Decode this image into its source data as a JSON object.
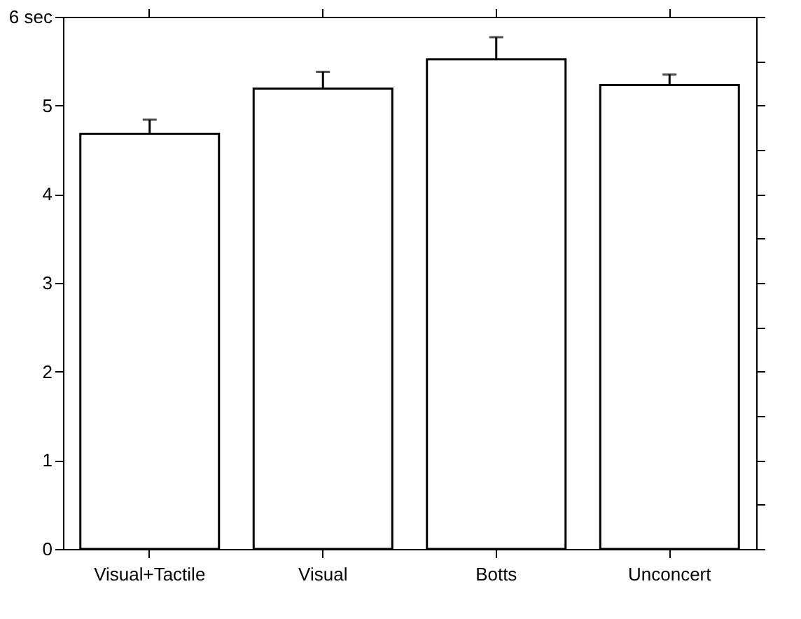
{
  "chart_data": {
    "type": "bar",
    "categories": [
      "Visual+Tactile",
      "Visual",
      "Botts",
      "Unconcert"
    ],
    "values": [
      4.68,
      5.19,
      5.52,
      5.23
    ],
    "errors": [
      [
        4.68,
        4.84
      ],
      [
        5.19,
        5.38
      ],
      [
        5.52,
        5.77
      ],
      [
        5.23,
        5.35
      ]
    ],
    "color": "#ffffff",
    "ylim": [
      0,
      6
    ],
    "yticks": [
      0,
      {
        "value": 0.5,
        "label": null
      },
      1,
      {
        "value": 1.5,
        "label": null
      },
      2,
      {
        "value": 2.5,
        "label": null
      },
      3,
      {
        "value": 3.5,
        "label": null
      },
      4,
      {
        "value": 4.5,
        "label": null
      },
      5,
      {
        "value": 5.5,
        "label": null
      },
      {
        "value": 6,
        "label": "6 sec"
      }
    ],
    "grid": false
  }
}
